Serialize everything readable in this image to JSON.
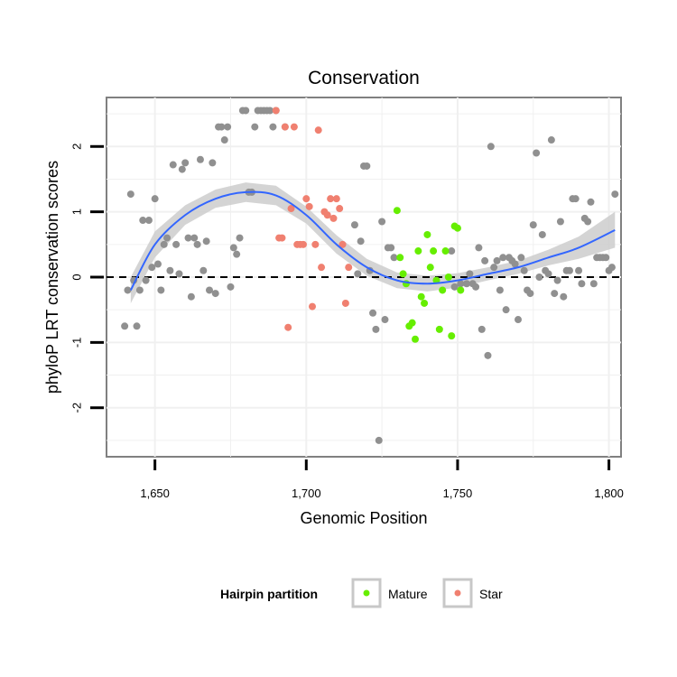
{
  "chart_data": {
    "type": "scatter",
    "title": "Conservation",
    "xlabel": "Genomic Position",
    "ylabel": "phyloP LRT conservation scores",
    "xlim": [
      1634,
      1804
    ],
    "ylim": [
      -2.75,
      2.75
    ],
    "x_ticks": [
      1650,
      1700,
      1750,
      1800
    ],
    "x_tick_labels": [
      "1,650",
      "1,700",
      "1,750",
      "1,800"
    ],
    "y_ticks": [
      -2,
      -1,
      0,
      1,
      2
    ],
    "y_tick_labels": [
      "-2",
      "-1",
      "0",
      "1",
      "2"
    ],
    "reference_line": {
      "y": 0,
      "style": "dashed",
      "color": "#000000"
    },
    "grid": true,
    "legend": {
      "title": "Hairpin partition",
      "position": "bottom",
      "entries": [
        {
          "name": "Mature",
          "color": "#66ee00"
        },
        {
          "name": "Star",
          "color": "#f08070"
        }
      ]
    },
    "series": [
      {
        "name": "",
        "color": "#909090",
        "points": [
          [
            1640,
            -0.75
          ],
          [
            1641,
            -0.2
          ],
          [
            1642,
            1.27
          ],
          [
            1643,
            -0.05
          ],
          [
            1644,
            -0.75
          ],
          [
            1645,
            -0.2
          ],
          [
            1646,
            0.87
          ],
          [
            1647,
            -0.05
          ],
          [
            1648,
            0.87
          ],
          [
            1649,
            0.15
          ],
          [
            1650,
            1.2
          ],
          [
            1651,
            0.2
          ],
          [
            1652,
            -0.2
          ],
          [
            1653,
            0.5
          ],
          [
            1654,
            0.6
          ],
          [
            1655,
            0.1
          ],
          [
            1656,
            1.72
          ],
          [
            1657,
            0.5
          ],
          [
            1658,
            0.05
          ],
          [
            1659,
            1.65
          ],
          [
            1660,
            1.75
          ],
          [
            1661,
            0.6
          ],
          [
            1662,
            -0.3
          ],
          [
            1663,
            0.6
          ],
          [
            1664,
            0.5
          ],
          [
            1665,
            1.8
          ],
          [
            1666,
            0.1
          ],
          [
            1667,
            0.55
          ],
          [
            1668,
            -0.2
          ],
          [
            1669,
            1.75
          ],
          [
            1670,
            -0.25
          ],
          [
            1671,
            2.3
          ],
          [
            1672,
            2.3
          ],
          [
            1673,
            2.1
          ],
          [
            1674,
            2.3
          ],
          [
            1675,
            -0.15
          ],
          [
            1676,
            0.45
          ],
          [
            1677,
            0.35
          ],
          [
            1678,
            0.6
          ],
          [
            1679,
            2.55
          ],
          [
            1680,
            2.55
          ],
          [
            1681,
            1.3
          ],
          [
            1682,
            1.3
          ],
          [
            1683,
            2.3
          ],
          [
            1684,
            2.55
          ],
          [
            1685,
            2.55
          ],
          [
            1686,
            2.55
          ],
          [
            1687,
            2.55
          ],
          [
            1688,
            2.55
          ],
          [
            1689,
            2.3
          ],
          [
            1690,
            2.55
          ],
          [
            1693,
            2.3
          ],
          [
            1716,
            0.8
          ],
          [
            1717,
            0.05
          ],
          [
            1718,
            0.55
          ],
          [
            1719,
            1.7
          ],
          [
            1720,
            1.7
          ],
          [
            1721,
            0.1
          ],
          [
            1722,
            -0.55
          ],
          [
            1723,
            -0.8
          ],
          [
            1724,
            -2.5
          ],
          [
            1725,
            0.85
          ],
          [
            1726,
            -0.65
          ],
          [
            1727,
            0.45
          ],
          [
            1728,
            0.45
          ],
          [
            1729,
            0.3
          ],
          [
            1748,
            0.4
          ],
          [
            1749,
            -0.15
          ],
          [
            1751,
            -0.1
          ],
          [
            1753,
            -0.1
          ],
          [
            1754,
            0.05
          ],
          [
            1755,
            -0.1
          ],
          [
            1756,
            -0.15
          ],
          [
            1757,
            0.45
          ],
          [
            1758,
            -0.8
          ],
          [
            1759,
            0.25
          ],
          [
            1760,
            -1.2
          ],
          [
            1761,
            2.0
          ],
          [
            1762,
            0.15
          ],
          [
            1763,
            0.25
          ],
          [
            1764,
            -0.2
          ],
          [
            1765,
            0.3
          ],
          [
            1766,
            -0.5
          ],
          [
            1767,
            0.3
          ],
          [
            1768,
            0.25
          ],
          [
            1769,
            0.2
          ],
          [
            1770,
            -0.65
          ],
          [
            1771,
            0.3
          ],
          [
            1772,
            0.1
          ],
          [
            1773,
            -0.2
          ],
          [
            1774,
            -0.25
          ],
          [
            1775,
            0.8
          ],
          [
            1776,
            1.9
          ],
          [
            1777,
            0.0
          ],
          [
            1778,
            0.65
          ],
          [
            1779,
            0.1
          ],
          [
            1780,
            0.05
          ],
          [
            1781,
            2.1
          ],
          [
            1782,
            -0.25
          ],
          [
            1783,
            -0.05
          ],
          [
            1784,
            0.85
          ],
          [
            1785,
            -0.3
          ],
          [
            1786,
            0.1
          ],
          [
            1787,
            0.1
          ],
          [
            1788,
            1.2
          ],
          [
            1789,
            1.2
          ],
          [
            1790,
            0.1
          ],
          [
            1791,
            -0.1
          ],
          [
            1792,
            0.9
          ],
          [
            1793,
            0.85
          ],
          [
            1794,
            1.15
          ],
          [
            1795,
            -0.1
          ],
          [
            1796,
            0.3
          ],
          [
            1797,
            0.3
          ],
          [
            1798,
            0.3
          ],
          [
            1799,
            0.3
          ],
          [
            1800,
            0.1
          ],
          [
            1801,
            0.15
          ],
          [
            1802,
            1.27
          ]
        ]
      },
      {
        "name": "Mature",
        "color": "#66ee00",
        "points": [
          [
            1730,
            1.02
          ],
          [
            1731,
            0.3
          ],
          [
            1732,
            0.05
          ],
          [
            1733,
            -0.1
          ],
          [
            1734,
            -0.75
          ],
          [
            1735,
            -0.7
          ],
          [
            1736,
            -0.95
          ],
          [
            1737,
            0.4
          ],
          [
            1738,
            -0.3
          ],
          [
            1739,
            -0.4
          ],
          [
            1740,
            0.65
          ],
          [
            1741,
            0.15
          ],
          [
            1742,
            0.4
          ],
          [
            1743,
            -0.05
          ],
          [
            1744,
            -0.8
          ],
          [
            1745,
            -0.2
          ],
          [
            1746,
            0.4
          ],
          [
            1747,
            0.0
          ],
          [
            1748,
            -0.9
          ],
          [
            1749,
            0.78
          ],
          [
            1750,
            0.75
          ],
          [
            1751,
            -0.2
          ]
        ]
      },
      {
        "name": "Star",
        "color": "#f08070",
        "points": [
          [
            1690,
            2.55
          ],
          [
            1691,
            0.6
          ],
          [
            1692,
            0.6
          ],
          [
            1693,
            2.3
          ],
          [
            1694,
            -0.77
          ],
          [
            1695,
            1.05
          ],
          [
            1696,
            2.3
          ],
          [
            1697,
            0.5
          ],
          [
            1698,
            0.5
          ],
          [
            1699,
            0.5
          ],
          [
            1700,
            1.2
          ],
          [
            1701,
            1.08
          ],
          [
            1702,
            -0.45
          ],
          [
            1703,
            0.5
          ],
          [
            1704,
            2.25
          ],
          [
            1705,
            0.15
          ],
          [
            1706,
            1.0
          ],
          [
            1707,
            0.95
          ],
          [
            1708,
            1.2
          ],
          [
            1709,
            0.9
          ],
          [
            1710,
            1.2
          ],
          [
            1711,
            1.05
          ],
          [
            1712,
            0.5
          ],
          [
            1713,
            -0.4
          ],
          [
            1714,
            0.15
          ]
        ]
      }
    ],
    "smooth": {
      "color": "#3366ff",
      "band_color": "#cccccc",
      "x": [
        1642,
        1650,
        1660,
        1670,
        1680,
        1690,
        1700,
        1710,
        1720,
        1730,
        1740,
        1750,
        1760,
        1770,
        1780,
        1790,
        1802
      ],
      "y": [
        -0.2,
        0.5,
        0.95,
        1.2,
        1.3,
        1.25,
        0.95,
        0.5,
        0.15,
        -0.05,
        -0.1,
        -0.05,
        0.05,
        0.15,
        0.3,
        0.45,
        0.72
      ],
      "lower": [
        -0.4,
        0.3,
        0.8,
        1.06,
        1.15,
        1.1,
        0.82,
        0.36,
        0.02,
        -0.17,
        -0.22,
        -0.16,
        -0.05,
        0.05,
        0.18,
        0.28,
        0.45
      ],
      "upper": [
        0.0,
        0.7,
        1.1,
        1.34,
        1.45,
        1.4,
        1.08,
        0.64,
        0.28,
        0.07,
        0.02,
        0.06,
        0.15,
        0.25,
        0.42,
        0.62,
        1.0
      ]
    }
  }
}
